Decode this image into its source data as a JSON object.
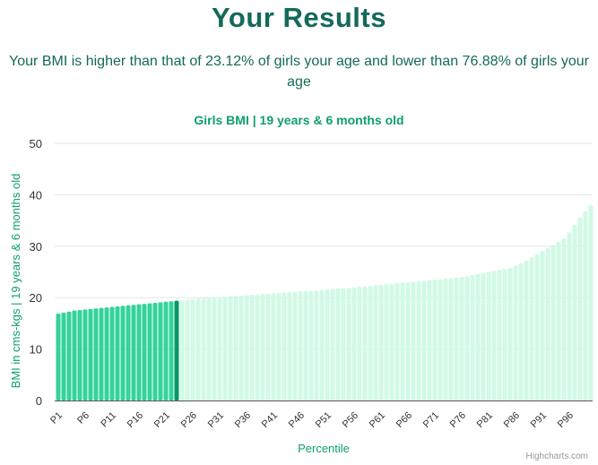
{
  "header": {
    "title": "Your Results",
    "subtitle": "Your BMI is higher than that of 23.12% of girls your age and lower than 76.88% of girls your age"
  },
  "credits": "Highcharts.com",
  "colors": {
    "title": "#14695a",
    "accent": "#0e9f6e",
    "bar_below": "#34d399",
    "bar_user": "#059669",
    "bar_above": "#d1fae5"
  },
  "chart_data": {
    "type": "bar",
    "title": "Girls BMI | 19 years & 6 months old",
    "xlabel": "Percentile",
    "ylabel": "BMI in cms-kgs | 19 years & 6 months old",
    "ylim": [
      0,
      50
    ],
    "yticks": [
      0,
      10,
      20,
      30,
      40,
      50
    ],
    "grid": true,
    "legend": "none",
    "highlight_percentile": "P23",
    "categories": [
      "P1",
      "P2",
      "P3",
      "P4",
      "P5",
      "P6",
      "P7",
      "P8",
      "P9",
      "P10",
      "P11",
      "P12",
      "P13",
      "P14",
      "P15",
      "P16",
      "P17",
      "P18",
      "P19",
      "P20",
      "P21",
      "P22",
      "P23",
      "P24",
      "P25",
      "P26",
      "P27",
      "P28",
      "P29",
      "P30",
      "P31",
      "P32",
      "P33",
      "P34",
      "P35",
      "P36",
      "P37",
      "P38",
      "P39",
      "P40",
      "P41",
      "P42",
      "P43",
      "P44",
      "P45",
      "P46",
      "P47",
      "P48",
      "P49",
      "P50",
      "P51",
      "P52",
      "P53",
      "P54",
      "P55",
      "P56",
      "P57",
      "P58",
      "P59",
      "P60",
      "P61",
      "P62",
      "P63",
      "P64",
      "P65",
      "P66",
      "P67",
      "P68",
      "P69",
      "P70",
      "P71",
      "P72",
      "P73",
      "P74",
      "P75",
      "P76",
      "P77",
      "P78",
      "P79",
      "P80",
      "P81",
      "P82",
      "P83",
      "P84",
      "P85",
      "P86",
      "P87",
      "P88",
      "P89",
      "P90",
      "P91",
      "P92",
      "P93",
      "P94",
      "P95",
      "P96",
      "P97",
      "P98",
      "P99",
      "P100"
    ],
    "visible_tick_labels": [
      "P1",
      "P6",
      "P11",
      "P16",
      "P21",
      "P26",
      "P31",
      "P36",
      "P41",
      "P46",
      "P51",
      "P56",
      "P61",
      "P66",
      "P71",
      "P76",
      "P81",
      "P86",
      "P91",
      "P96"
    ],
    "values": [
      16.9,
      17.1,
      17.3,
      17.5,
      17.6,
      17.7,
      17.8,
      17.9,
      18.0,
      18.1,
      18.2,
      18.3,
      18.4,
      18.5,
      18.6,
      18.7,
      18.8,
      18.9,
      19.0,
      19.1,
      19.2,
      19.3,
      19.4,
      19.5,
      19.6,
      19.7,
      19.8,
      19.9,
      20.0,
      20.05,
      20.1,
      20.2,
      20.3,
      20.35,
      20.4,
      20.5,
      20.55,
      20.6,
      20.7,
      20.8,
      20.85,
      20.9,
      21.0,
      21.05,
      21.1,
      21.2,
      21.25,
      21.3,
      21.4,
      21.5,
      21.6,
      21.7,
      21.75,
      21.8,
      21.9,
      22.0,
      22.1,
      22.2,
      22.3,
      22.4,
      22.5,
      22.6,
      22.7,
      22.8,
      22.9,
      23.0,
      23.1,
      23.2,
      23.3,
      23.4,
      23.5,
      23.6,
      23.7,
      23.8,
      23.9,
      24.0,
      24.2,
      24.4,
      24.6,
      24.8,
      25.0,
      25.2,
      25.4,
      25.6,
      25.8,
      26.2,
      26.7,
      27.2,
      27.8,
      28.4,
      29.0,
      29.6,
      30.2,
      30.8,
      31.5,
      32.7,
      34.2,
      35.6,
      36.8,
      38.0
    ]
  }
}
